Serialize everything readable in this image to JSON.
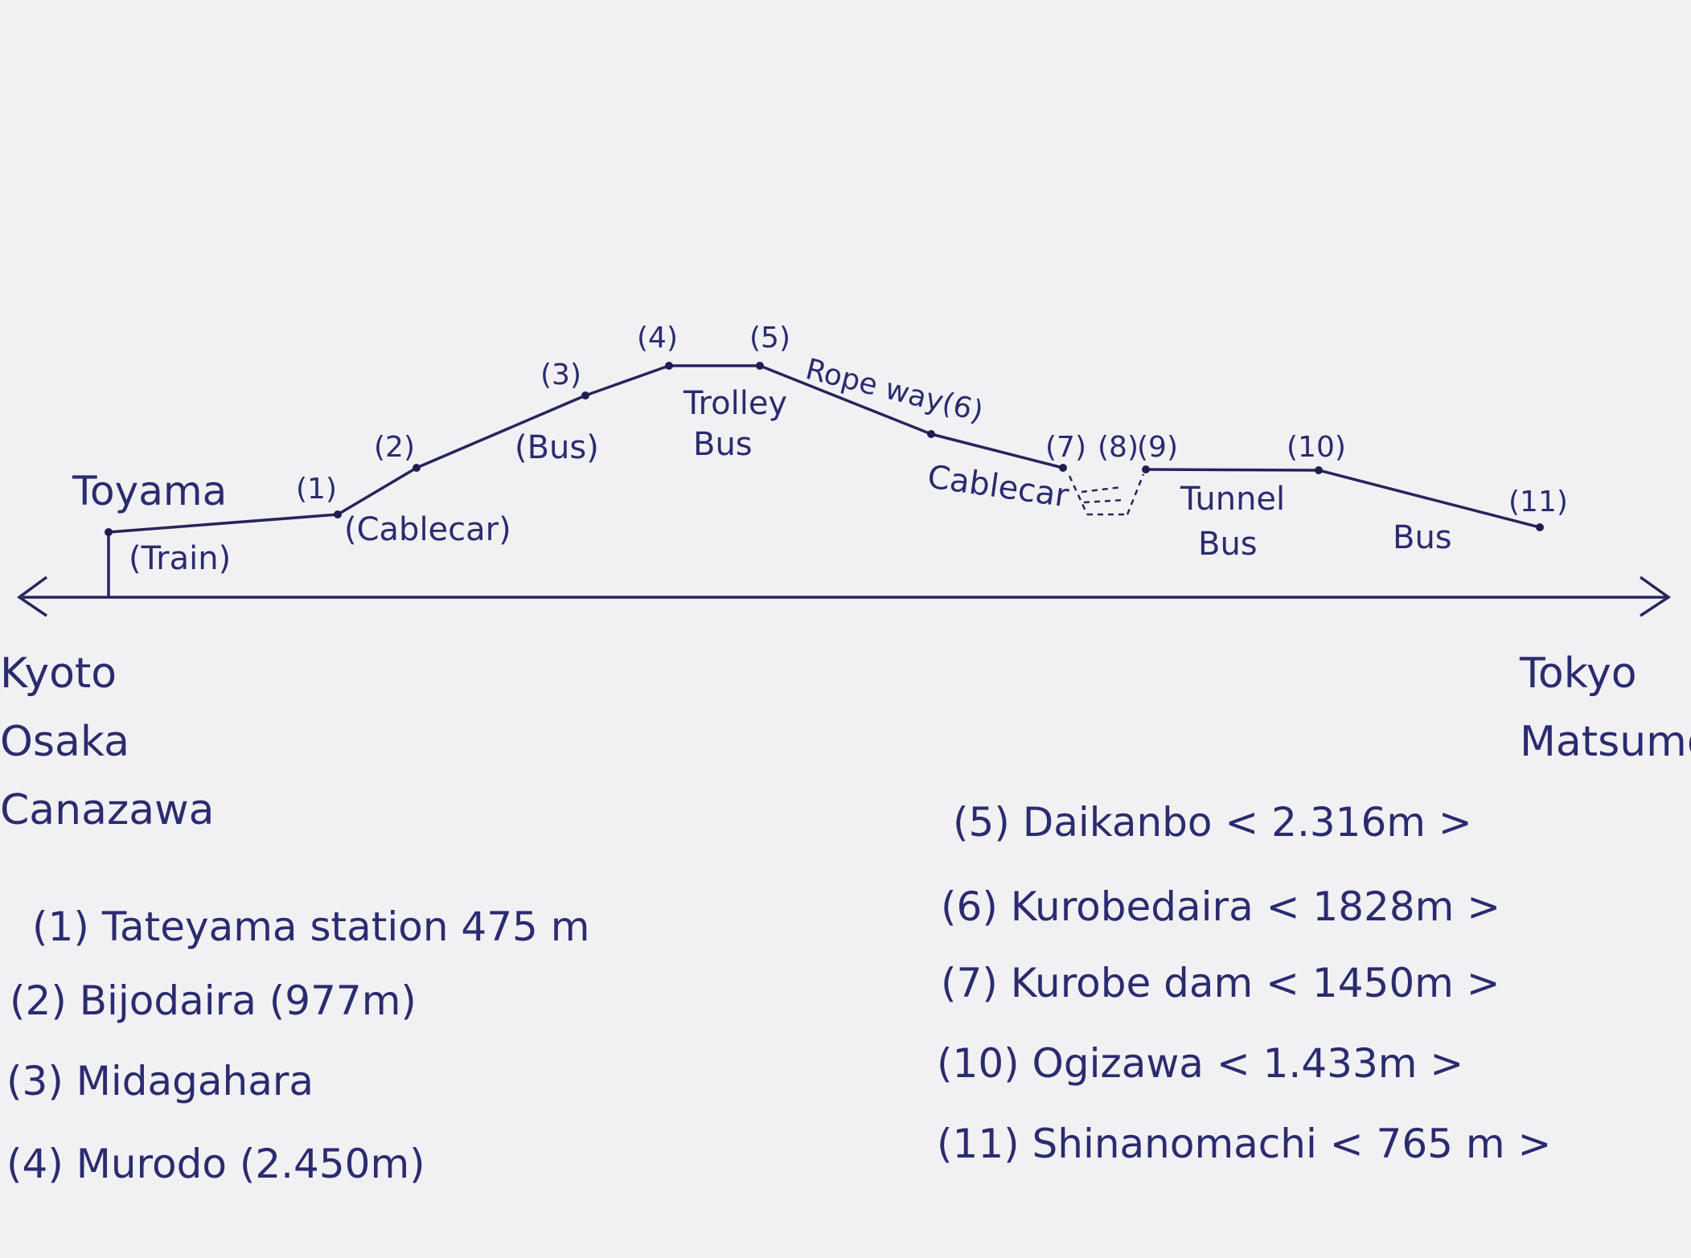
{
  "start": {
    "label": "Toyama"
  },
  "stations": [
    {
      "id": "s1",
      "label": "(1)"
    },
    {
      "id": "s2",
      "label": "(2)"
    },
    {
      "id": "s3",
      "label": "(3)"
    },
    {
      "id": "s4",
      "label": "(4)"
    },
    {
      "id": "s5",
      "label": "(5)"
    },
    {
      "id": "s6",
      "label": "Rope way(6)"
    },
    {
      "id": "s7",
      "label": "(7)"
    },
    {
      "id": "s8",
      "label": "(8)"
    },
    {
      "id": "s9",
      "label": "(9)"
    },
    {
      "id": "s10",
      "label": "(10)"
    },
    {
      "id": "s11",
      "label": "(11)"
    }
  ],
  "segments": [
    {
      "id": "train",
      "lines": [
        "(Train)"
      ]
    },
    {
      "id": "cablecar1",
      "lines": [
        "(Cablecar)"
      ]
    },
    {
      "id": "bus1",
      "lines": [
        "(Bus)"
      ]
    },
    {
      "id": "trolley",
      "lines": [
        "Trolley",
        "Bus"
      ]
    },
    {
      "id": "cablecar2",
      "lines": [
        "Cablecar"
      ]
    },
    {
      "id": "tunnel",
      "lines": [
        "Tunnel",
        "Bus"
      ]
    },
    {
      "id": "bus2",
      "lines": [
        "Bus"
      ]
    }
  ],
  "left_cities": [
    "Kyoto",
    "Osaka",
    "Canazawa"
  ],
  "right_cities": [
    "Tokyo",
    "Matsumoto"
  ],
  "legend_left": [
    "(1) Tateyama station 475 m",
    "(2) Bijodaira (977m)",
    "(3) Midagahara",
    "(4) Murodo (2.450m)"
  ],
  "legend_right": [
    "(5) Daikanbo < 2.316m >",
    "(6) Kurobedaira < 1828m >",
    "(7) Kurobe dam < 1450m >",
    "(10) Ogizawa < 1.433m >",
    "(11) Shinanomachi < 765 m >"
  ],
  "colors": {
    "ink": "#2b2b70",
    "paper": "#f1f1f3"
  }
}
